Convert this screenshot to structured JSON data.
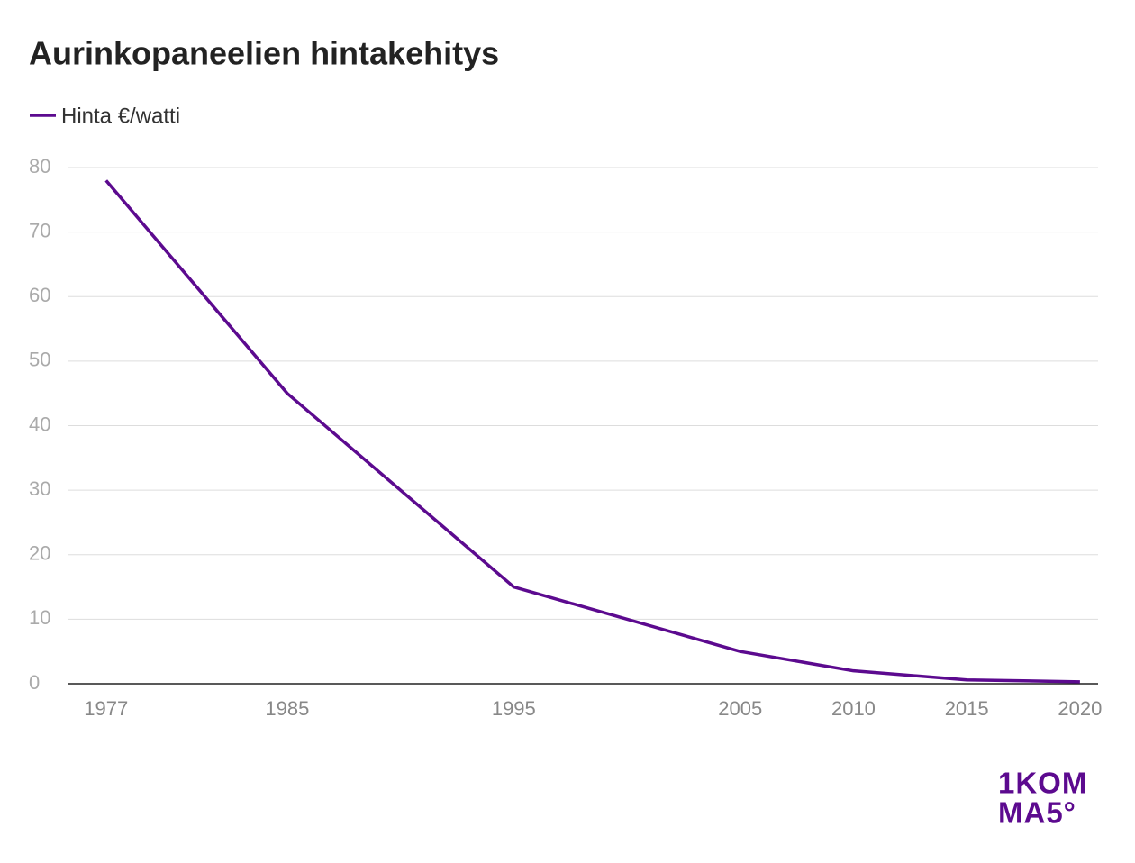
{
  "chart_data": {
    "type": "line",
    "title": "Aurinkopaneelien hintakehitys",
    "x": [
      1977,
      1985,
      1995,
      2005,
      2010,
      2015,
      2020
    ],
    "series": [
      {
        "name": "Hinta €/watti",
        "color": "#5c0a8f",
        "values": [
          78,
          45,
          15,
          5,
          2,
          0.6,
          0.3
        ]
      }
    ],
    "xlim": [
      1975.3,
      2020.8
    ],
    "xticks": [
      1977,
      1985,
      1995,
      2005,
      2010,
      2015,
      2020
    ],
    "ylim": [
      0,
      80
    ],
    "yticks": [
      0,
      10,
      20,
      30,
      40,
      50,
      60,
      70,
      80
    ],
    "grid": true,
    "logo": [
      "1KOM",
      "MA5°"
    ]
  }
}
